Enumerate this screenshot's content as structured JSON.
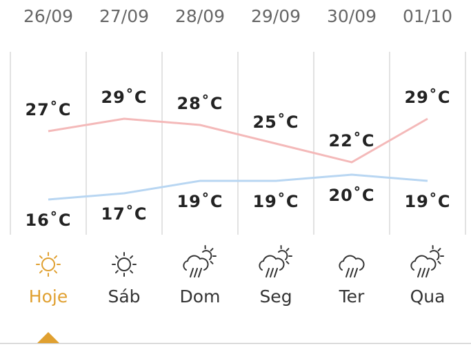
{
  "chart_data": {
    "type": "line",
    "categories": [
      "26/09",
      "27/09",
      "28/09",
      "29/09",
      "30/09",
      "01/10"
    ],
    "day_labels": [
      "Hoje",
      "Sáb",
      "Dom",
      "Seg",
      "Ter",
      "Qua"
    ],
    "icons": [
      "sun",
      "sun",
      "cloud-sun-rain",
      "cloud-sun-rain",
      "cloud-rain",
      "cloud-sun-rain"
    ],
    "selected": 0,
    "selected_color": "#e0a030",
    "series": [
      {
        "color": "#f4b9b9",
        "values": [
          27,
          29,
          28,
          25,
          22,
          29
        ],
        "value_labels": [
          "27˚C",
          "29˚C",
          "28˚C",
          "25˚C",
          "22˚C",
          "29˚C"
        ]
      },
      {
        "color": "#b8d6f2",
        "values": [
          16,
          17,
          19,
          19,
          20,
          19
        ],
        "value_labels": [
          "16˚C",
          "17˚C",
          "19˚C",
          "19˚C",
          "20˚C",
          "19˚C"
        ]
      }
    ]
  }
}
